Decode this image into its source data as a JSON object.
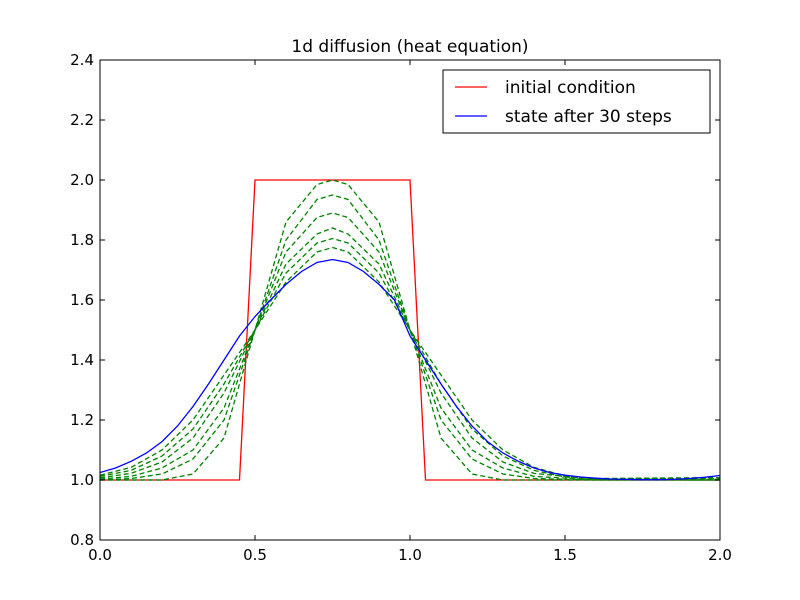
{
  "chart_data": {
    "type": "line",
    "title": "1d diffusion (heat equation)",
    "xlabel": "",
    "ylabel": "",
    "xlim": [
      0.0,
      2.0
    ],
    "ylim": [
      0.8,
      2.4
    ],
    "xticks": [
      0.0,
      0.5,
      1.0,
      1.5,
      2.0
    ],
    "xtick_labels": [
      "0.0",
      "0.5",
      "1.0",
      "1.5",
      "2.0"
    ],
    "yticks": [
      0.8,
      1.0,
      1.2,
      1.4,
      1.6,
      1.8,
      2.0,
      2.2,
      2.4
    ],
    "ytick_labels": [
      "0.8",
      "1.0",
      "1.2",
      "1.4",
      "1.6",
      "1.8",
      "2.0",
      "2.2",
      "2.4"
    ],
    "grid": false,
    "legend_position": "top-right",
    "series": [
      {
        "name": "initial condition",
        "color": "#ff0000",
        "style": "solid",
        "x": [
          0.0,
          0.45,
          0.5,
          1.0,
          1.05,
          2.0
        ],
        "y": [
          1.0,
          1.0,
          2.0,
          2.0,
          1.0,
          1.0
        ]
      },
      {
        "color": "#008000",
        "style": "dashed",
        "x": [
          0.0,
          0.2,
          0.3,
          0.4,
          0.5,
          0.6,
          0.7,
          0.75,
          0.8,
          0.9,
          1.0,
          1.1,
          1.2,
          1.3,
          1.5,
          2.0
        ],
        "y": [
          1.0,
          1.0,
          1.02,
          1.14,
          1.5,
          1.86,
          1.985,
          2.0,
          1.985,
          1.86,
          1.5,
          1.14,
          1.02,
          1.0,
          1.0,
          1.0
        ]
      },
      {
        "color": "#008000",
        "style": "dashed",
        "x": [
          0.0,
          0.1,
          0.2,
          0.3,
          0.4,
          0.5,
          0.6,
          0.7,
          0.75,
          0.8,
          0.9,
          1.0,
          1.1,
          1.2,
          1.3,
          1.4,
          1.6,
          2.0
        ],
        "y": [
          1.0,
          1.005,
          1.02,
          1.07,
          1.2,
          1.5,
          1.8,
          1.935,
          1.95,
          1.935,
          1.8,
          1.5,
          1.2,
          1.07,
          1.02,
          1.005,
          1.0,
          1.0
        ]
      },
      {
        "color": "#008000",
        "style": "dashed",
        "x": [
          0.0,
          0.1,
          0.2,
          0.3,
          0.4,
          0.5,
          0.6,
          0.7,
          0.75,
          0.8,
          0.9,
          1.0,
          1.1,
          1.2,
          1.3,
          1.4,
          1.6,
          2.0
        ],
        "y": [
          1.003,
          1.012,
          1.04,
          1.1,
          1.24,
          1.5,
          1.76,
          1.875,
          1.89,
          1.875,
          1.76,
          1.5,
          1.24,
          1.1,
          1.04,
          1.012,
          1.001,
          1.0
        ]
      },
      {
        "color": "#008000",
        "style": "dashed",
        "x": [
          0.0,
          0.1,
          0.2,
          0.3,
          0.4,
          0.5,
          0.6,
          0.7,
          0.75,
          0.8,
          0.9,
          1.0,
          1.1,
          1.2,
          1.3,
          1.4,
          1.6,
          2.0
        ],
        "y": [
          1.007,
          1.022,
          1.06,
          1.14,
          1.29,
          1.5,
          1.72,
          1.82,
          1.84,
          1.82,
          1.72,
          1.5,
          1.29,
          1.14,
          1.06,
          1.022,
          1.003,
          1.002
        ]
      },
      {
        "color": "#008000",
        "style": "dashed",
        "x": [
          0.0,
          0.1,
          0.2,
          0.3,
          0.4,
          0.5,
          0.6,
          0.7,
          0.75,
          0.8,
          0.9,
          1.0,
          1.1,
          1.2,
          1.3,
          1.4,
          1.5,
          1.6,
          2.0
        ],
        "y": [
          1.012,
          1.032,
          1.08,
          1.17,
          1.32,
          1.5,
          1.69,
          1.79,
          1.805,
          1.79,
          1.69,
          1.5,
          1.32,
          1.17,
          1.08,
          1.032,
          1.01,
          1.004,
          1.005
        ]
      },
      {
        "color": "#008000",
        "style": "dashed",
        "x": [
          0.0,
          0.1,
          0.2,
          0.3,
          0.4,
          0.5,
          0.6,
          0.7,
          0.75,
          0.8,
          0.9,
          1.0,
          1.1,
          1.2,
          1.3,
          1.4,
          1.5,
          1.6,
          2.0
        ],
        "y": [
          1.016,
          1.042,
          1.1,
          1.2,
          1.35,
          1.5,
          1.66,
          1.76,
          1.775,
          1.76,
          1.66,
          1.5,
          1.35,
          1.2,
          1.1,
          1.042,
          1.014,
          1.005,
          1.008
        ]
      },
      {
        "name": "state after 30 steps",
        "color": "#0000ff",
        "style": "solid",
        "x": [
          0.0,
          0.05,
          0.1,
          0.15,
          0.2,
          0.25,
          0.3,
          0.35,
          0.4,
          0.45,
          0.5,
          0.55,
          0.6,
          0.65,
          0.7,
          0.75,
          0.8,
          0.85,
          0.9,
          0.95,
          1.0,
          1.05,
          1.1,
          1.15,
          1.2,
          1.25,
          1.3,
          1.35,
          1.4,
          1.45,
          1.5,
          1.55,
          1.6,
          1.65,
          1.7,
          1.75,
          1.8,
          1.85,
          1.9,
          1.95,
          2.0
        ],
        "y": [
          1.025,
          1.04,
          1.062,
          1.09,
          1.128,
          1.18,
          1.245,
          1.32,
          1.4,
          1.48,
          1.545,
          1.6,
          1.652,
          1.695,
          1.725,
          1.735,
          1.725,
          1.695,
          1.652,
          1.6,
          1.48,
          1.4,
          1.32,
          1.245,
          1.18,
          1.128,
          1.09,
          1.062,
          1.04,
          1.025,
          1.016,
          1.01,
          1.006,
          1.003,
          1.002,
          1.001,
          1.001,
          1.002,
          1.005,
          1.009,
          1.015
        ]
      }
    ]
  }
}
